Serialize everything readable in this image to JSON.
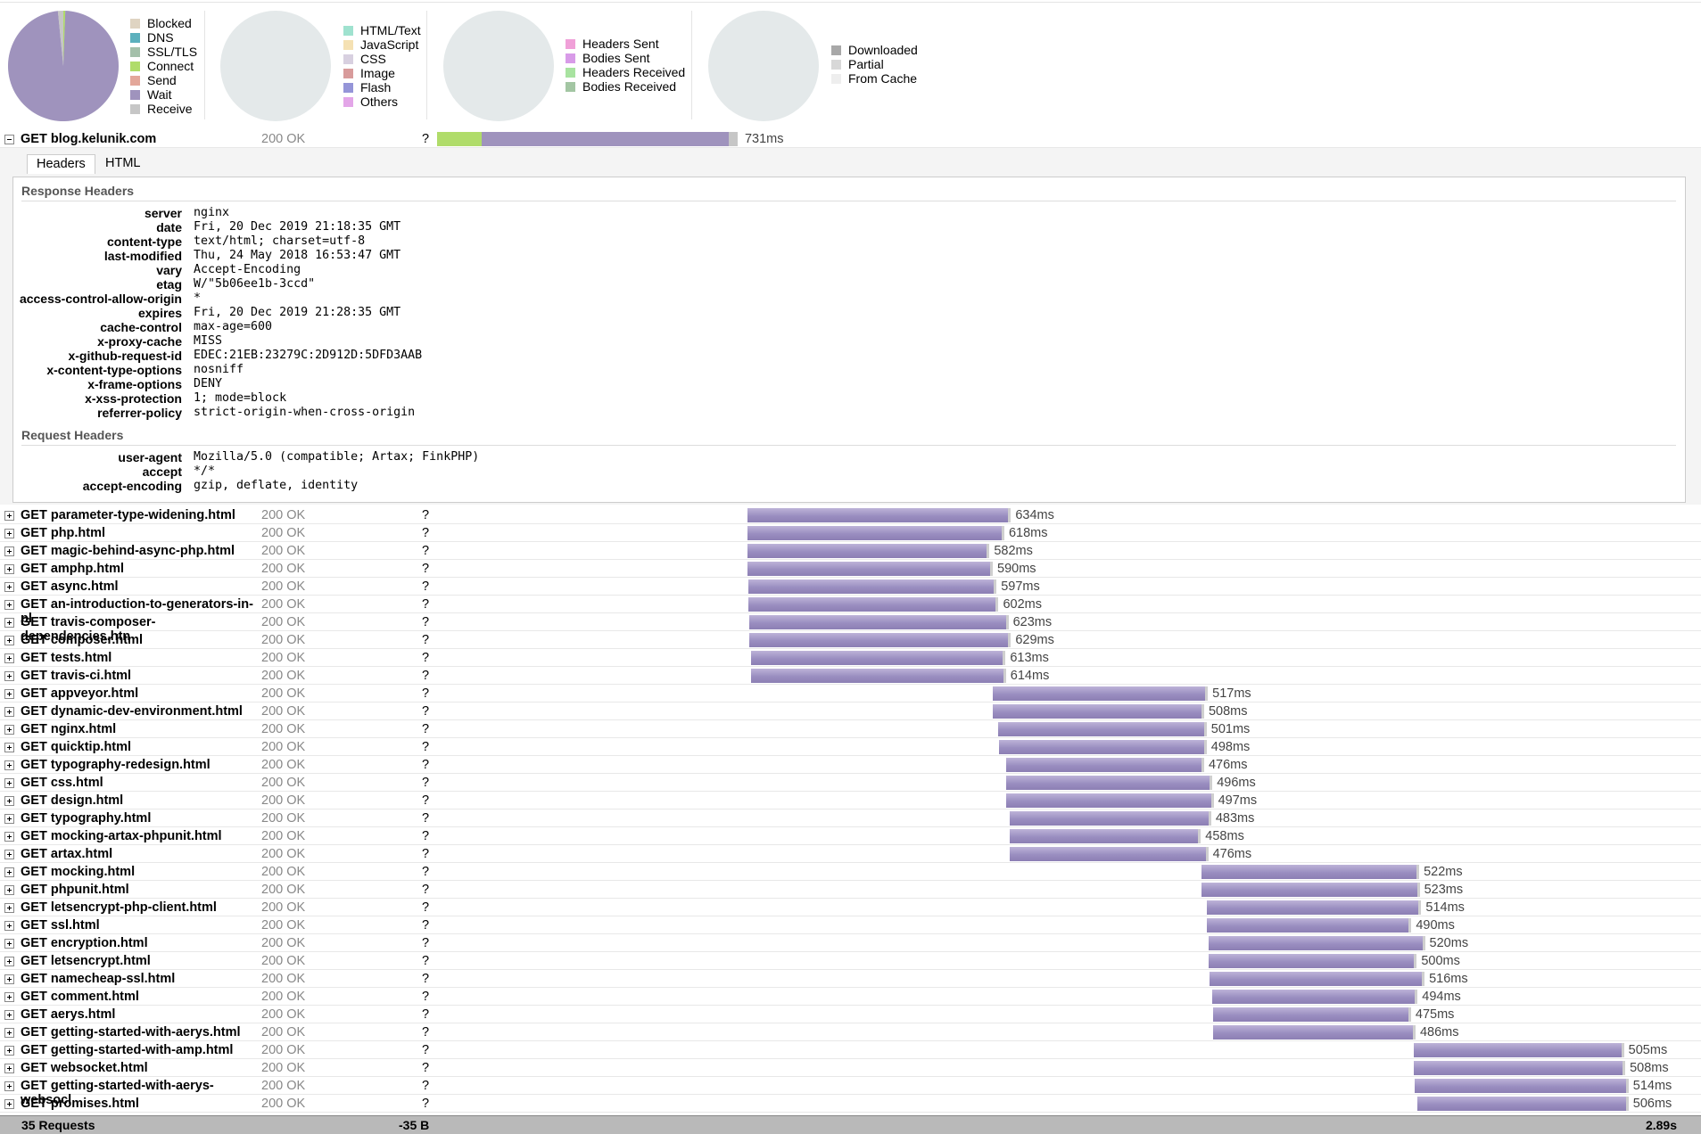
{
  "pies": [
    {
      "legend": [
        "Blocked",
        "DNS",
        "SSL/TLS",
        "Connect",
        "Send",
        "Wait",
        "Receive"
      ],
      "colors": [
        "#dfd4c2",
        "#5cb0bd",
        "#a4c0aa",
        "#b0dc6a",
        "#e3a79a",
        "#9f93bd",
        "#c6c6c6"
      ],
      "values": [
        0,
        0,
        0,
        108,
        0,
        18600,
        300
      ]
    },
    {
      "legend": [
        "HTML/Text",
        "JavaScript",
        "CSS",
        "Image",
        "Flash",
        "Others"
      ],
      "colors": [
        "#9fe2cf",
        "#f5e1b3",
        "#d8d0e0",
        "#d89b9b",
        "#9595d8",
        "#e3a6e8"
      ]
    },
    {
      "legend": [
        "Headers Sent",
        "Bodies Sent",
        "Headers Received",
        "Bodies Received"
      ],
      "colors": [
        "#f0a0d8",
        "#d89be8",
        "#a8e3a0",
        "#a3c6a3"
      ]
    },
    {
      "legend": [
        "Downloaded",
        "Partial",
        "From Cache"
      ],
      "colors": [
        "#a8a8a8",
        "#d8d8d8",
        "#eeeeee"
      ]
    }
  ],
  "requests": [
    {
      "label": "GET blog.kelunik.com",
      "status": "200 OK",
      "size": "?",
      "start": 0,
      "duration": 731,
      "time": "731ms",
      "phases": [
        108,
        602,
        21
      ],
      "phase_colors": [
        "#b0dc6a",
        "#9f93bd",
        "#c6c6c6"
      ]
    },
    {
      "label": "GET parameter-type-widening.html",
      "status": "200 OK",
      "size": "?",
      "start": 755,
      "duration": 634,
      "time": "634ms"
    },
    {
      "label": "GET php.html",
      "status": "200 OK",
      "size": "?",
      "start": 755,
      "duration": 618,
      "time": "618ms"
    },
    {
      "label": "GET magic-behind-async-php.html",
      "status": "200 OK",
      "size": "?",
      "start": 755,
      "duration": 582,
      "time": "582ms"
    },
    {
      "label": "GET amphp.html",
      "status": "200 OK",
      "size": "?",
      "start": 755,
      "duration": 590,
      "time": "590ms"
    },
    {
      "label": "GET async.html",
      "status": "200 OK",
      "size": "?",
      "start": 757,
      "duration": 597,
      "time": "597ms"
    },
    {
      "label": "GET an-introduction-to-generators-in-pl",
      "status": "200 OK",
      "size": "?",
      "start": 757,
      "duration": 602,
      "time": "602ms"
    },
    {
      "label": "GET travis-composer-dependencies.htn",
      "status": "200 OK",
      "size": "?",
      "start": 760,
      "duration": 623,
      "time": "623ms"
    },
    {
      "label": "GET composer.html",
      "status": "200 OK",
      "size": "?",
      "start": 760,
      "duration": 629,
      "time": "629ms"
    },
    {
      "label": "GET tests.html",
      "status": "200 OK",
      "size": "?",
      "start": 763,
      "duration": 613,
      "time": "613ms"
    },
    {
      "label": "GET travis-ci.html",
      "status": "200 OK",
      "size": "?",
      "start": 763,
      "duration": 614,
      "time": "614ms"
    },
    {
      "label": "GET appveyor.html",
      "status": "200 OK",
      "size": "?",
      "start": 1351,
      "duration": 517,
      "time": "517ms"
    },
    {
      "label": "GET dynamic-dev-environment.html",
      "status": "200 OK",
      "size": "?",
      "start": 1351,
      "duration": 508,
      "time": "508ms"
    },
    {
      "label": "GET nginx.html",
      "status": "200 OK",
      "size": "?",
      "start": 1364,
      "duration": 501,
      "time": "501ms"
    },
    {
      "label": "GET quicktip.html",
      "status": "200 OK",
      "size": "?",
      "start": 1367,
      "duration": 498,
      "time": "498ms"
    },
    {
      "label": "GET typography-redesign.html",
      "status": "200 OK",
      "size": "?",
      "start": 1383,
      "duration": 476,
      "time": "476ms"
    },
    {
      "label": "GET css.html",
      "status": "200 OK",
      "size": "?",
      "start": 1383,
      "duration": 496,
      "time": "496ms"
    },
    {
      "label": "GET design.html",
      "status": "200 OK",
      "size": "?",
      "start": 1385,
      "duration": 497,
      "time": "497ms"
    },
    {
      "label": "GET typography.html",
      "status": "200 OK",
      "size": "?",
      "start": 1393,
      "duration": 483,
      "time": "483ms"
    },
    {
      "label": "GET mocking-artax-phpunit.html",
      "status": "200 OK",
      "size": "?",
      "start": 1393,
      "duration": 458,
      "time": "458ms"
    },
    {
      "label": "GET artax.html",
      "status": "200 OK",
      "size": "?",
      "start": 1393,
      "duration": 476,
      "time": "476ms"
    },
    {
      "label": "GET mocking.html",
      "status": "200 OK",
      "size": "?",
      "start": 1860,
      "duration": 522,
      "time": "522ms"
    },
    {
      "label": "GET phpunit.html",
      "status": "200 OK",
      "size": "?",
      "start": 1860,
      "duration": 523,
      "time": "523ms"
    },
    {
      "label": "GET letsencrypt-php-client.html",
      "status": "200 OK",
      "size": "?",
      "start": 1873,
      "duration": 514,
      "time": "514ms"
    },
    {
      "label": "GET ssl.html",
      "status": "200 OK",
      "size": "?",
      "start": 1873,
      "duration": 490,
      "time": "490ms"
    },
    {
      "label": "GET encryption.html",
      "status": "200 OK",
      "size": "?",
      "start": 1876,
      "duration": 520,
      "time": "520ms"
    },
    {
      "label": "GET letsencrypt.html",
      "status": "200 OK",
      "size": "?",
      "start": 1876,
      "duration": 500,
      "time": "500ms"
    },
    {
      "label": "GET namecheap-ssl.html",
      "status": "200 OK",
      "size": "?",
      "start": 1879,
      "duration": 516,
      "time": "516ms"
    },
    {
      "label": "GET comment.html",
      "status": "200 OK",
      "size": "?",
      "start": 1884,
      "duration": 494,
      "time": "494ms"
    },
    {
      "label": "GET aerys.html",
      "status": "200 OK",
      "size": "?",
      "start": 1887,
      "duration": 475,
      "time": "475ms"
    },
    {
      "label": "GET getting-started-with-aerys.html",
      "status": "200 OK",
      "size": "?",
      "start": 1887,
      "duration": 486,
      "time": "486ms"
    },
    {
      "label": "GET getting-started-with-amp.html",
      "status": "200 OK",
      "size": "?",
      "start": 2375,
      "duration": 505,
      "time": "505ms"
    },
    {
      "label": "GET websocket.html",
      "status": "200 OK",
      "size": "?",
      "start": 2375,
      "duration": 508,
      "time": "508ms"
    },
    {
      "label": "GET getting-started-with-aerys-websocl",
      "status": "200 OK",
      "size": "?",
      "start": 2377,
      "duration": 514,
      "time": "514ms"
    },
    {
      "label": "GET promises.html",
      "status": "200 OK",
      "size": "?",
      "start": 2385,
      "duration": 506,
      "time": "506ms"
    }
  ],
  "details": {
    "tabs": [
      "Headers",
      "HTML"
    ],
    "response_title": "Response Headers",
    "response": [
      [
        "server",
        "nginx"
      ],
      [
        "date",
        "Fri, 20 Dec 2019 21:18:35 GMT"
      ],
      [
        "content-type",
        "text/html; charset=utf-8"
      ],
      [
        "last-modified",
        "Thu, 24 May 2018 16:53:47 GMT"
      ],
      [
        "vary",
        "Accept-Encoding"
      ],
      [
        "etag",
        "W/\"5b06ee1b-3ccd\""
      ],
      [
        "access-control-allow-origin",
        "*"
      ],
      [
        "expires",
        "Fri, 20 Dec 2019 21:28:35 GMT"
      ],
      [
        "cache-control",
        "max-age=600"
      ],
      [
        "x-proxy-cache",
        "MISS"
      ],
      [
        "x-github-request-id",
        "EDEC:21EB:23279C:2D912D:5DFD3AAB"
      ],
      [
        "x-content-type-options",
        "nosniff"
      ],
      [
        "x-frame-options",
        "DENY"
      ],
      [
        "x-xss-protection",
        "1; mode=block"
      ],
      [
        "referrer-policy",
        "strict-origin-when-cross-origin"
      ]
    ],
    "request_title": "Request Headers",
    "request": [
      [
        "user-agent",
        "Mozilla/5.0 (compatible; Artax; FinkPHP)"
      ],
      [
        "accept",
        "*/*"
      ],
      [
        "accept-encoding",
        "gzip, deflate, identity"
      ]
    ]
  },
  "footer": {
    "count": "35 Requests",
    "size": "-35 B",
    "total": "2.89s"
  }
}
